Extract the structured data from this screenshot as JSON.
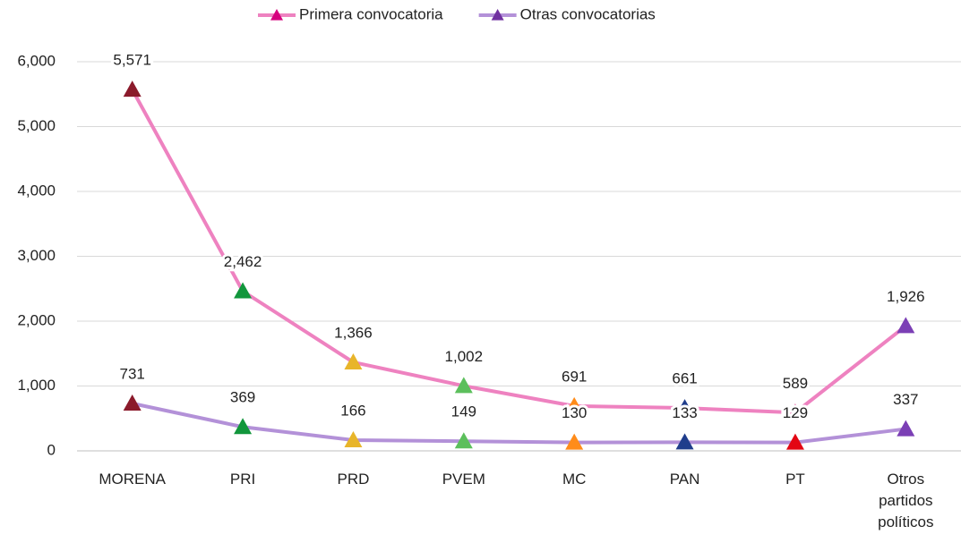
{
  "chart_data": {
    "type": "line",
    "categories": [
      "MORENA",
      "PRI",
      "PRD",
      "PVEM",
      "MC",
      "PAN",
      "PT",
      "Otros partidos políticos"
    ],
    "series": [
      {
        "name": "Primera convocatoria",
        "color": "#ee82c0",
        "legend_marker_color": "#d6007e",
        "marker_colors": [
          "#8b1a2b",
          "#12963c",
          "#e8b52a",
          "#5cbf5c",
          "#ff8c1a",
          "#1f3d8c",
          "#d6006f",
          "#7b3fb5"
        ],
        "values": [
          5571,
          2462,
          1366,
          1002,
          691,
          661,
          589,
          1926
        ],
        "value_labels": [
          "5,571",
          "2,462",
          "1,366",
          "1,002",
          "691",
          "661",
          "589",
          "1,926"
        ]
      },
      {
        "name": "Otras convocatorias",
        "color": "#b391d8",
        "legend_marker_color": "#7030a0",
        "marker_colors": [
          "#8b1a2b",
          "#12963c",
          "#e8b52a",
          "#5cbf5c",
          "#ff8c1a",
          "#1f3d8c",
          "#e30613",
          "#7b3fb5"
        ],
        "values": [
          731,
          369,
          166,
          149,
          130,
          133,
          129,
          337
        ]
      }
    ],
    "ylim": [
      0,
      6000
    ],
    "yticks": [
      0,
      {
        "value": 1000,
        "label": "1,000"
      },
      {
        "value": 2000,
        "label": "2,000"
      },
      {
        "value": 3000,
        "label": "3,000"
      },
      {
        "value": 4000,
        "label": "4,000"
      },
      {
        "value": 5000,
        "label": "5,000"
      },
      {
        "value": 6000,
        "label": "6,000"
      }
    ],
    "grid": true,
    "legend": "top"
  }
}
